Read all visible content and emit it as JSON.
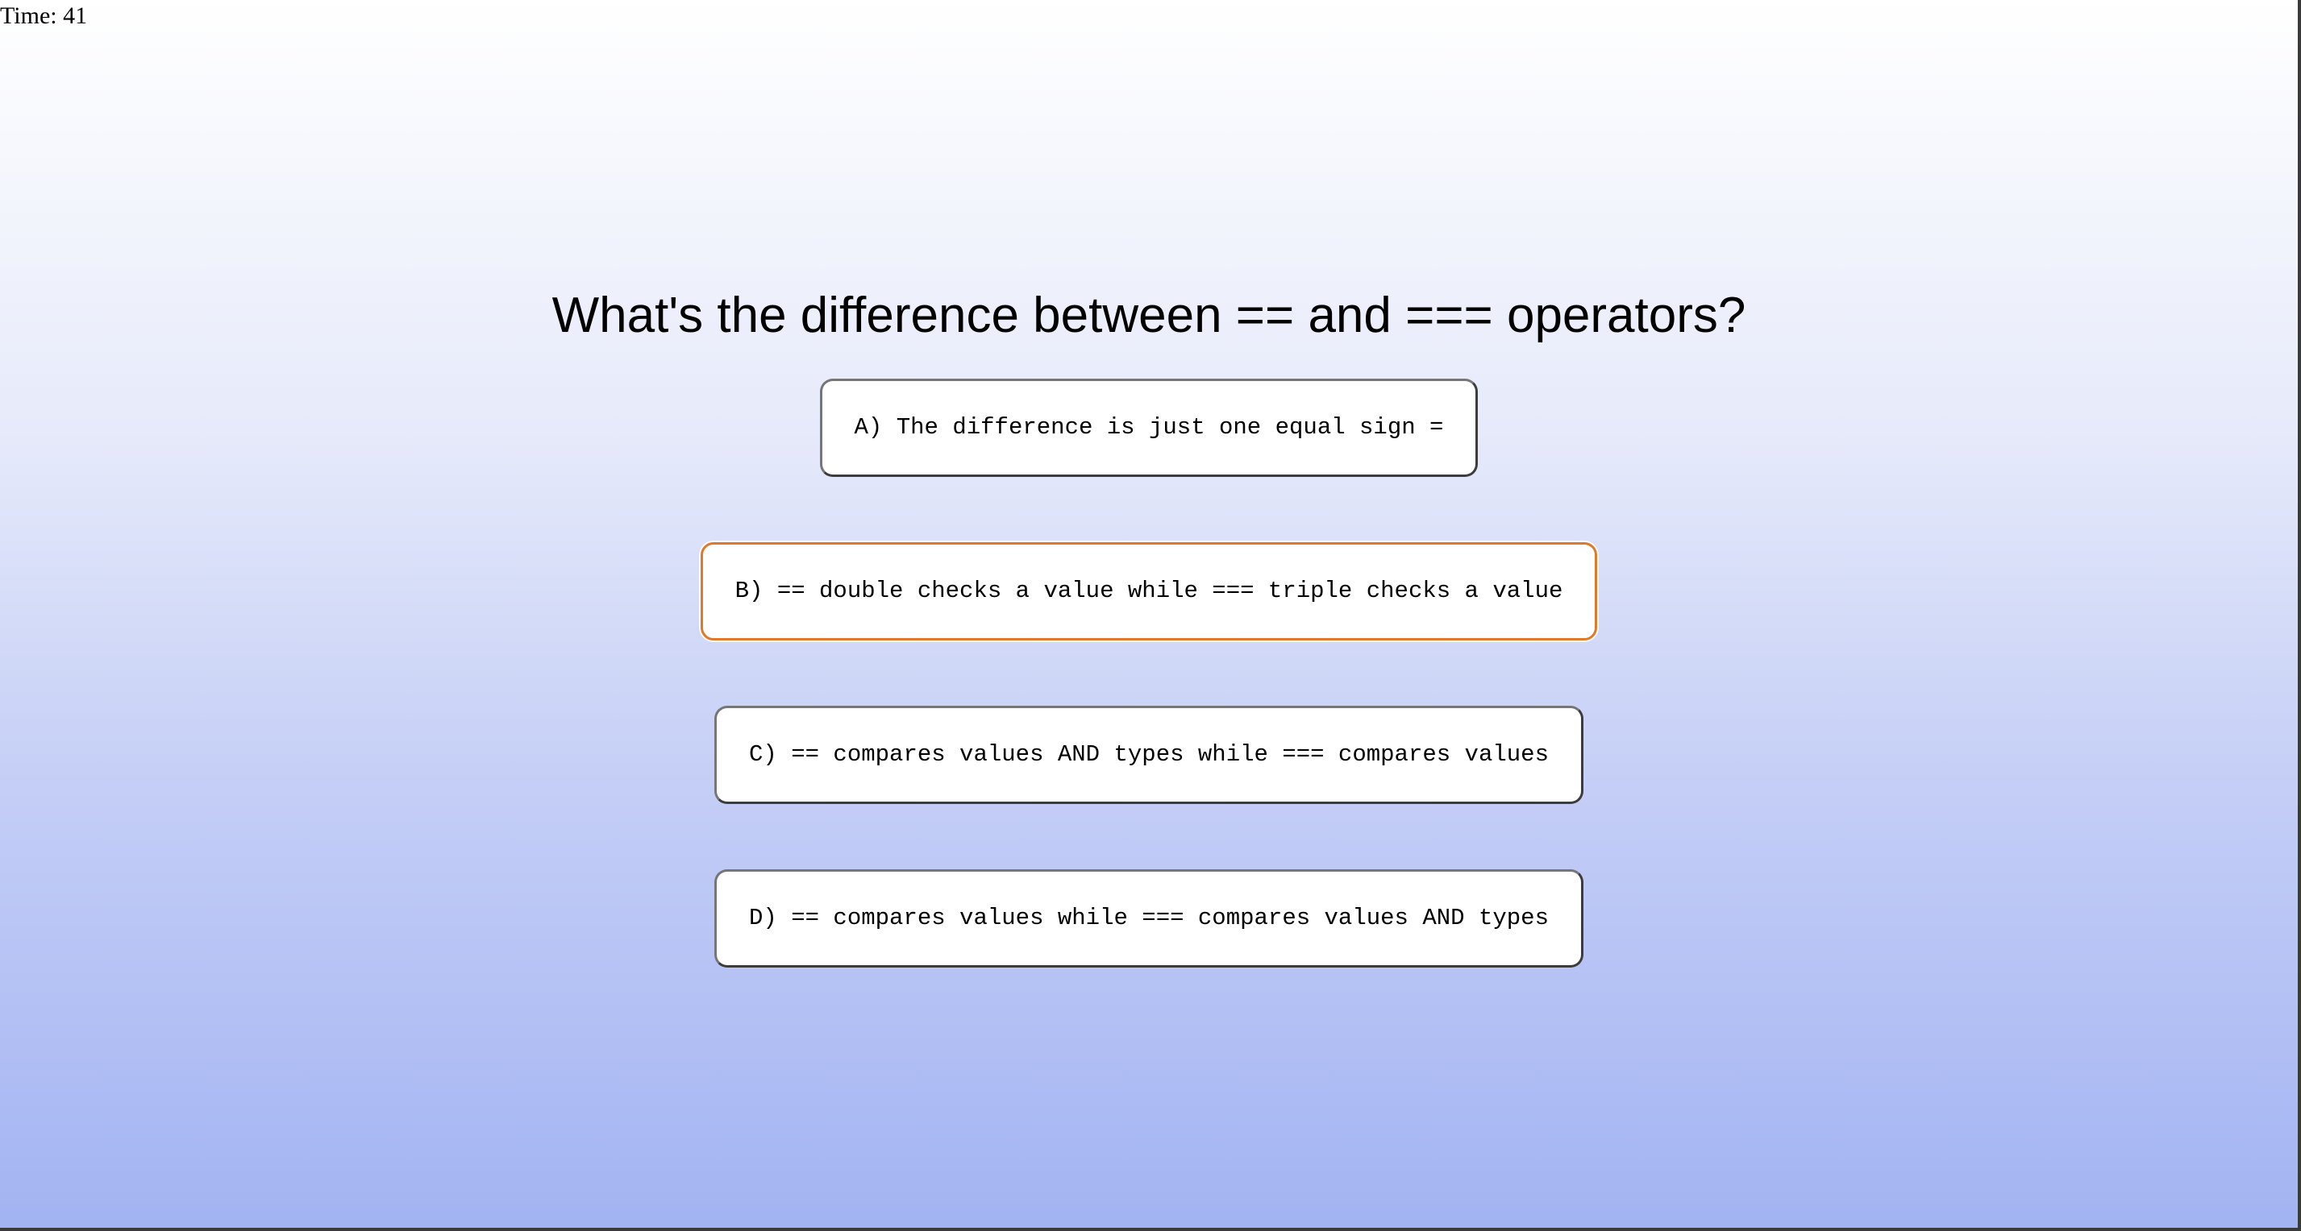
{
  "timer": {
    "text": "Time: 41"
  },
  "quiz": {
    "question": "What's the difference between == and === operators?",
    "options": [
      {
        "label": "A) The difference is just one equal sign ="
      },
      {
        "label": "B) == double checks a value while === triple checks a value"
      },
      {
        "label": "C) == compares values AND types while === compares values"
      },
      {
        "label": "D) == compares values while === compares values AND types"
      }
    ]
  },
  "colors": {
    "background_top": "#ffffff",
    "background_bottom": "#a2b3f2",
    "option_border": "#3c3c3c",
    "option_hover_border": "#e07a2a"
  }
}
